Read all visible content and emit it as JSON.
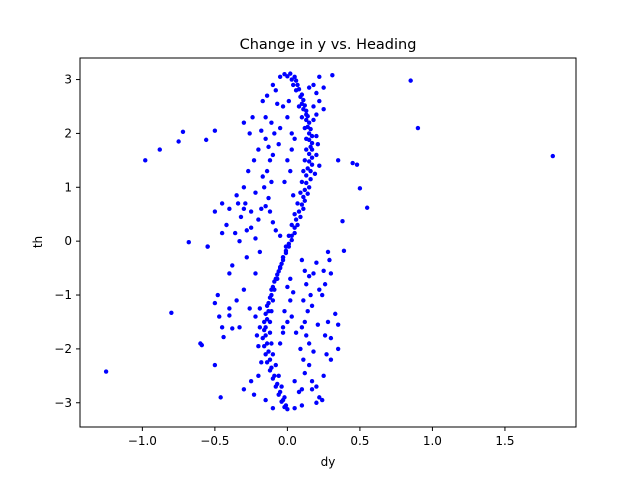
{
  "chart_data": {
    "type": "scatter",
    "title": "Change in y vs. Heading",
    "xlabel": "dy",
    "ylabel": "th",
    "xlim": [
      -1.43,
      1.99
    ],
    "ylim": [
      -3.45,
      3.4
    ],
    "x_ticks": [
      -1.0,
      -0.5,
      0.0,
      0.5,
      1.0,
      1.5
    ],
    "x_tick_labels": [
      "−1.0",
      "−0.5",
      "0.0",
      "0.5",
      "1.0",
      "1.5"
    ],
    "y_ticks": [
      -3,
      -2,
      -1,
      0,
      1,
      2,
      3
    ],
    "y_tick_labels": [
      "−3",
      "−2",
      "−1",
      "0",
      "1",
      "2",
      "3"
    ],
    "grid": false,
    "legend": "none",
    "marker_color": "#0000ff",
    "series": [
      {
        "points": [
          [
            0.02,
            3.11
          ],
          [
            0.05,
            3.05
          ],
          [
            0.06,
            2.98
          ],
          [
            0.07,
            2.9
          ],
          [
            0.08,
            2.82
          ],
          [
            0.1,
            2.72
          ],
          [
            0.11,
            2.62
          ],
          [
            0.12,
            2.52
          ],
          [
            0.13,
            2.42
          ],
          [
            0.14,
            2.32
          ],
          [
            0.15,
            2.2
          ],
          [
            0.16,
            2.08
          ],
          [
            0.17,
            1.95
          ],
          [
            0.17,
            1.82
          ],
          [
            0.17,
            1.7
          ],
          [
            0.17,
            1.55
          ],
          [
            0.17,
            1.42
          ],
          [
            0.16,
            1.3
          ],
          [
            0.16,
            1.15
          ],
          [
            0.15,
            1.0
          ],
          [
            0.14,
            0.88
          ],
          [
            0.12,
            0.75
          ],
          [
            0.11,
            0.6
          ],
          [
            0.09,
            0.45
          ],
          [
            0.07,
            0.3
          ],
          [
            0.05,
            0.15
          ],
          [
            0.03,
            0.02
          ],
          [
            0.01,
            -0.1
          ],
          [
            -0.01,
            -0.22
          ],
          [
            -0.03,
            -0.35
          ],
          [
            -0.05,
            -0.48
          ],
          [
            -0.07,
            -0.62
          ],
          [
            -0.09,
            -0.75
          ],
          [
            -0.11,
            -0.9
          ],
          [
            -0.12,
            -1.05
          ],
          [
            -0.14,
            -1.2
          ],
          [
            -0.15,
            -1.35
          ],
          [
            -0.16,
            -1.5
          ],
          [
            -0.16,
            -1.65
          ],
          [
            -0.17,
            -1.8
          ],
          [
            -0.16,
            -1.95
          ],
          [
            -0.15,
            -2.1
          ],
          [
            -0.14,
            -2.25
          ],
          [
            -0.12,
            -2.4
          ],
          [
            -0.1,
            -2.55
          ],
          [
            -0.08,
            -2.7
          ],
          [
            -0.06,
            -2.85
          ],
          [
            -0.04,
            -2.98
          ],
          [
            -0.02,
            -3.08
          ],
          [
            0.0,
            -3.12
          ],
          [
            -0.02,
            3.1
          ],
          [
            0.0,
            3.06
          ],
          [
            0.03,
            3.0
          ],
          [
            0.04,
            2.9
          ],
          [
            0.06,
            2.8
          ],
          [
            0.09,
            2.68
          ],
          [
            0.1,
            2.55
          ],
          [
            0.11,
            2.45
          ],
          [
            0.13,
            2.35
          ],
          [
            0.13,
            2.25
          ],
          [
            0.14,
            2.12
          ],
          [
            0.15,
            2.0
          ],
          [
            0.15,
            1.88
          ],
          [
            0.16,
            1.75
          ],
          [
            0.15,
            1.62
          ],
          [
            0.15,
            1.48
          ],
          [
            0.14,
            1.35
          ],
          [
            0.13,
            1.22
          ],
          [
            0.13,
            1.08
          ],
          [
            0.12,
            0.95
          ],
          [
            0.11,
            0.82
          ],
          [
            0.1,
            0.68
          ],
          [
            0.08,
            0.55
          ],
          [
            0.06,
            0.4
          ],
          [
            0.05,
            0.25
          ],
          [
            0.03,
            0.1
          ],
          [
            0.01,
            -0.05
          ],
          [
            -0.01,
            -0.18
          ],
          [
            -0.03,
            -0.3
          ],
          [
            -0.04,
            -0.42
          ],
          [
            -0.06,
            -0.56
          ],
          [
            -0.08,
            -0.7
          ],
          [
            -0.1,
            -0.85
          ],
          [
            -0.11,
            -1.0
          ],
          [
            -0.13,
            -1.15
          ],
          [
            -0.13,
            -1.3
          ],
          [
            -0.14,
            -1.45
          ],
          [
            -0.15,
            -1.6
          ],
          [
            -0.15,
            -1.75
          ],
          [
            -0.14,
            -1.9
          ],
          [
            -0.13,
            -2.05
          ],
          [
            -0.12,
            -2.2
          ],
          [
            -0.11,
            -2.35
          ],
          [
            -0.09,
            -2.5
          ],
          [
            -0.07,
            -2.65
          ],
          [
            -0.05,
            -2.8
          ],
          [
            -0.03,
            -2.95
          ],
          [
            -0.01,
            -3.05
          ],
          [
            0.08,
            2.5
          ],
          [
            0.1,
            2.3
          ],
          [
            0.12,
            2.1
          ],
          [
            0.13,
            1.9
          ],
          [
            0.13,
            1.7
          ],
          [
            0.12,
            1.5
          ],
          [
            0.11,
            1.3
          ],
          [
            0.1,
            1.1
          ],
          [
            0.09,
            0.9
          ],
          [
            0.07,
            0.7
          ],
          [
            0.05,
            0.5
          ],
          [
            0.03,
            0.3
          ],
          [
            0.01,
            0.1
          ],
          [
            -0.01,
            -0.1
          ],
          [
            -0.03,
            -0.3
          ],
          [
            -0.05,
            -0.5
          ],
          [
            -0.07,
            -0.7
          ],
          [
            -0.09,
            -0.9
          ],
          [
            -0.1,
            -1.1
          ],
          [
            -0.11,
            -1.3
          ],
          [
            -0.12,
            -1.5
          ],
          [
            -0.12,
            -1.7
          ],
          [
            -0.11,
            -1.9
          ],
          [
            -0.1,
            -2.1
          ],
          [
            -0.08,
            -2.3
          ],
          [
            -0.06,
            -2.5
          ],
          [
            -0.04,
            -2.7
          ],
          [
            -0.02,
            -2.9
          ],
          [
            0.2,
            1.95
          ],
          [
            0.2,
            1.6
          ],
          [
            0.19,
            1.25
          ],
          [
            0.21,
            1.8
          ],
          [
            0.22,
            1.4
          ],
          [
            0.18,
            2.25
          ],
          [
            -0.19,
            -1.6
          ],
          [
            -0.2,
            -1.95
          ],
          [
            -0.19,
            -1.25
          ],
          [
            -0.21,
            -1.75
          ],
          [
            -0.22,
            -1.4
          ],
          [
            -0.18,
            -2.25
          ],
          [
            -0.15,
            1.9
          ],
          [
            -0.13,
            1.75
          ],
          [
            -0.12,
            1.5
          ],
          [
            -0.14,
            1.3
          ],
          [
            -0.11,
            1.1
          ],
          [
            -0.1,
            1.6
          ],
          [
            -0.16,
            1.0
          ],
          [
            -0.13,
            0.8
          ],
          [
            -0.15,
            0.65
          ],
          [
            -0.18,
            0.6
          ],
          [
            -0.12,
            0.55
          ],
          [
            -0.2,
            0.4
          ],
          [
            -0.1,
            0.35
          ],
          [
            -0.08,
            0.2
          ],
          [
            -0.05,
            0.1
          ],
          [
            -0.22,
            0.9
          ],
          [
            -0.17,
            1.2
          ],
          [
            -0.25,
            0.55
          ],
          [
            -0.28,
            0.2
          ],
          [
            -0.3,
            0.6
          ],
          [
            -0.35,
            0.85
          ],
          [
            -0.09,
            2.0
          ],
          [
            -0.11,
            2.2
          ],
          [
            -0.18,
            2.05
          ],
          [
            -0.15,
            2.3
          ],
          [
            -0.17,
            2.6
          ],
          [
            -0.08,
            2.8
          ],
          [
            0.05,
            1.9
          ],
          [
            0.03,
            1.7
          ],
          [
            0.0,
            1.5
          ],
          [
            0.02,
            1.3
          ],
          [
            -0.02,
            1.1
          ],
          [
            0.04,
            0.85
          ],
          [
            0.15,
            -1.9
          ],
          [
            0.13,
            -1.75
          ],
          [
            0.12,
            -1.5
          ],
          [
            0.14,
            -1.3
          ],
          [
            0.11,
            -1.1
          ],
          [
            0.1,
            -1.6
          ],
          [
            0.16,
            -1.0
          ],
          [
            0.13,
            -0.8
          ],
          [
            0.15,
            -0.65
          ],
          [
            0.18,
            -0.6
          ],
          [
            0.12,
            -0.55
          ],
          [
            0.2,
            -0.4
          ],
          [
            0.1,
            -0.35
          ],
          [
            0.22,
            -0.9
          ],
          [
            0.17,
            -1.2
          ],
          [
            0.25,
            -0.55
          ],
          [
            0.28,
            -0.2
          ],
          [
            0.3,
            -0.6
          ],
          [
            0.09,
            -2.0
          ],
          [
            0.11,
            -2.2
          ],
          [
            0.18,
            -2.05
          ],
          [
            0.15,
            -2.3
          ],
          [
            0.17,
            -2.6
          ],
          [
            0.08,
            -2.8
          ],
          [
            -0.05,
            -1.9
          ],
          [
            -0.03,
            -1.7
          ],
          [
            0.0,
            -1.5
          ],
          [
            -0.02,
            -1.3
          ],
          [
            0.02,
            -1.1
          ],
          [
            0.25,
            -2.5
          ],
          [
            0.2,
            -2.7
          ],
          [
            0.22,
            -2.9
          ],
          [
            0.1,
            -2.75
          ],
          [
            0.05,
            -2.6
          ],
          [
            0.24,
            -2.95
          ],
          [
            0.17,
            -2.75
          ],
          [
            0.12,
            -2.45
          ],
          [
            0.28,
            -1.5
          ],
          [
            0.3,
            -1.8
          ],
          [
            0.27,
            -2.1
          ],
          [
            0.35,
            -1.55
          ],
          [
            0.26,
            -1.75
          ],
          [
            0.33,
            -1.35
          ],
          [
            0.21,
            -1.55
          ],
          [
            0.24,
            -1.0
          ],
          [
            0.26,
            -0.8
          ],
          [
            0.29,
            -0.35
          ],
          [
            0.35,
            -2.0
          ],
          [
            0.3,
            -2.2
          ],
          [
            0.02,
            -0.7
          ],
          [
            0.0,
            -0.85
          ],
          [
            0.04,
            -0.95
          ],
          [
            0.03,
            -1.4
          ],
          [
            -0.03,
            -1.6
          ],
          [
            0.06,
            -1.7
          ],
          [
            0.01,
            2.6
          ],
          [
            -0.03,
            2.5
          ],
          [
            0.0,
            2.3
          ],
          [
            -0.05,
            2.1
          ],
          [
            0.03,
            2.0
          ],
          [
            -0.06,
            1.8
          ],
          [
            0.22,
            3.05
          ],
          [
            0.18,
            2.9
          ],
          [
            0.2,
            2.75
          ],
          [
            0.22,
            2.6
          ],
          [
            0.15,
            2.85
          ],
          [
            0.25,
            2.45
          ],
          [
            0.18,
            2.5
          ],
          [
            0.2,
            2.35
          ],
          [
            -0.05,
            3.05
          ],
          [
            -0.1,
            2.9
          ],
          [
            -0.14,
            2.7
          ],
          [
            -0.07,
            2.55
          ],
          [
            -0.24,
            2.3
          ],
          [
            -0.3,
            2.2
          ],
          [
            -0.26,
            2.0
          ],
          [
            -0.2,
            1.7
          ],
          [
            -0.23,
            1.5
          ],
          [
            -0.27,
            1.3
          ],
          [
            -0.3,
            1.0
          ],
          [
            -0.34,
            0.7
          ],
          [
            -0.4,
            0.6
          ],
          [
            -0.45,
            0.7
          ],
          [
            -0.5,
            0.55
          ],
          [
            -0.42,
            0.3
          ],
          [
            -0.55,
            -0.1
          ],
          [
            -0.38,
            -0.45
          ],
          [
            -0.45,
            0.15
          ],
          [
            -0.33,
            0.0
          ],
          [
            -0.28,
            -0.3
          ],
          [
            -0.22,
            -0.6
          ],
          [
            -0.4,
            -0.6
          ],
          [
            -0.48,
            -1.0
          ],
          [
            -0.3,
            -0.9
          ],
          [
            -0.35,
            -1.1
          ],
          [
            -0.26,
            -1.25
          ],
          [
            -0.4,
            -1.25
          ],
          [
            -0.47,
            -1.4
          ],
          [
            -0.33,
            -1.6
          ],
          [
            -0.45,
            -1.6
          ],
          [
            -0.6,
            -1.9
          ],
          [
            -0.5,
            -2.3
          ],
          [
            -0.46,
            -2.9
          ],
          [
            -0.2,
            -2.5
          ],
          [
            -0.25,
            -2.6
          ],
          [
            -0.3,
            -2.75
          ],
          [
            -0.23,
            -2.85
          ],
          [
            -0.15,
            -2.95
          ],
          [
            -0.1,
            -3.1
          ],
          [
            0.05,
            -3.1
          ],
          [
            0.1,
            -3.05
          ],
          [
            0.2,
            -3.0
          ],
          [
            -0.36,
            0.15
          ],
          [
            -0.32,
            0.45
          ],
          [
            -0.29,
            0.7
          ],
          [
            -0.25,
            0.25
          ],
          [
            -0.22,
            0.05
          ],
          [
            -0.19,
            -0.2
          ],
          [
            0.31,
            3.08
          ],
          [
            0.25,
            2.85
          ],
          [
            0.35,
            1.5
          ],
          [
            0.45,
            1.45
          ],
          [
            0.48,
            1.42
          ],
          [
            0.5,
            0.98
          ],
          [
            0.55,
            0.62
          ],
          [
            0.38,
            0.37
          ],
          [
            0.39,
            -0.18
          ],
          [
            0.85,
            2.98
          ],
          [
            0.9,
            2.1
          ],
          [
            1.83,
            1.58
          ],
          [
            -0.98,
            1.5
          ],
          [
            -0.88,
            1.7
          ],
          [
            -0.75,
            1.85
          ],
          [
            -0.72,
            2.03
          ],
          [
            -0.56,
            1.88
          ],
          [
            -0.5,
            2.05
          ],
          [
            -0.68,
            -0.02
          ],
          [
            -0.55,
            -0.1
          ],
          [
            -0.8,
            -1.33
          ],
          [
            -1.25,
            -2.42
          ],
          [
            -0.59,
            -1.93
          ],
          [
            -0.5,
            -1.15
          ],
          [
            -0.4,
            -1.38
          ],
          [
            -0.38,
            -1.62
          ],
          [
            -0.44,
            -1.78
          ]
        ]
      }
    ]
  }
}
